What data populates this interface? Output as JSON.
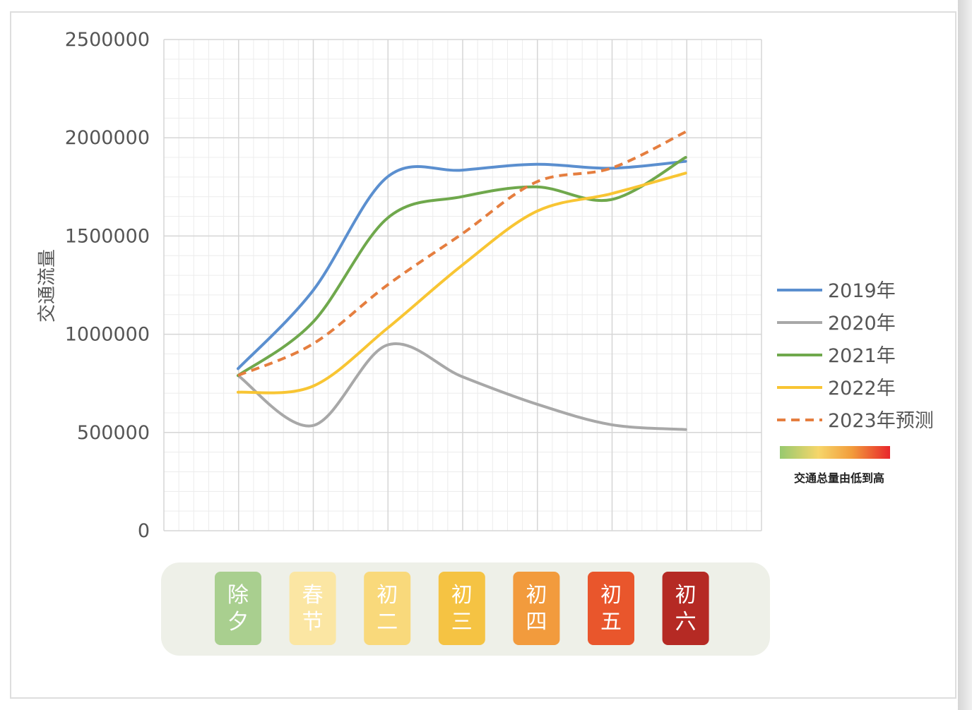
{
  "chart_data": {
    "type": "line",
    "ylabel": "交通流量",
    "xlabel": "",
    "ylim": [
      0,
      2500000
    ],
    "yticks": [
      "0",
      "500000",
      "1000000",
      "1500000",
      "2000000",
      "2500000"
    ],
    "categories": [
      "除夕",
      "春节",
      "初二",
      "初三",
      "初四",
      "初五",
      "初六"
    ],
    "category_colors": [
      "#a9cf8f",
      "#fbe6a3",
      "#f9d97b",
      "#f5c343",
      "#f29b3d",
      "#e9562c",
      "#b52a24"
    ],
    "grid": true,
    "smooth": true,
    "legend_position": "right",
    "series": [
      {
        "name": "2019年",
        "color": "#5b8fcf",
        "style": "solid",
        "values": [
          825000,
          1220000,
          1800000,
          1835000,
          1865000,
          1845000,
          1880000
        ]
      },
      {
        "name": "2020年",
        "color": "#a8a8a8",
        "style": "solid",
        "values": [
          790000,
          535000,
          945000,
          785000,
          645000,
          540000,
          515000
        ]
      },
      {
        "name": "2021年",
        "color": "#6fa84c",
        "style": "solid",
        "values": [
          790000,
          1060000,
          1590000,
          1700000,
          1750000,
          1685000,
          1900000
        ]
      },
      {
        "name": "2022年",
        "color": "#f8c533",
        "style": "solid",
        "values": [
          705000,
          735000,
          1030000,
          1350000,
          1625000,
          1715000,
          1820000
        ]
      },
      {
        "name": "2023年预测",
        "color": "#e57e3f",
        "style": "dashed",
        "values": [
          790000,
          950000,
          1250000,
          1510000,
          1775000,
          1845000,
          2030000
        ]
      }
    ],
    "color_scale": {
      "caption": "交通总量由低到高",
      "colors": [
        "#97c96f",
        "#f6d66a",
        "#f29d3c",
        "#e8262b"
      ]
    }
  }
}
